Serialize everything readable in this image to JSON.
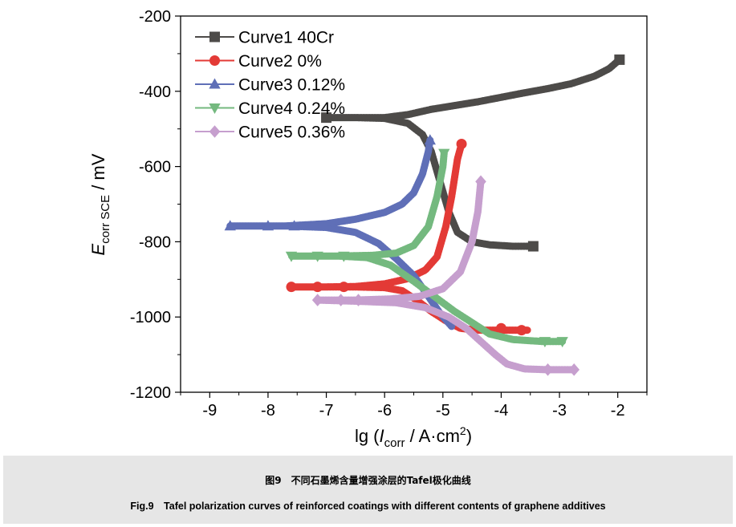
{
  "figure": {
    "caption_cn": "图9　不同石墨烯含量增强涂层的Tafel极化曲线",
    "caption_en": "Fig.9　Tafel polarization curves of reinforced coatings with different contents of graphene additives"
  },
  "chart_data": {
    "type": "line",
    "title": "",
    "xlabel": "lg (I_corr / A·cm^2)",
    "xlabel_parts": {
      "prefix": "lg (",
      "var": "I",
      "sub": "corr",
      "unit": " / A·cm",
      "sup": "2",
      "close": ")"
    },
    "ylabel": "E_corr SCE / mV",
    "ylabel_parts": {
      "var": "E",
      "sub": "corr SCE",
      "unit": " / mV"
    },
    "xlim": [
      -9.5,
      -1.5
    ],
    "ylim": [
      -1200,
      -200
    ],
    "xticks": [
      -9,
      -8,
      -7,
      -6,
      -5,
      -4,
      -3,
      -2
    ],
    "yticks": [
      -200,
      -400,
      -600,
      -800,
      -1000,
      -1200
    ],
    "legend_position": "top-left",
    "series": [
      {
        "name": "Curve1 40Cr",
        "color": "#4d4b49",
        "marker": "square",
        "points": [
          [
            -3.45,
            -812
          ],
          [
            -3.8,
            -812
          ],
          [
            -4.2,
            -808
          ],
          [
            -4.5,
            -800
          ],
          [
            -4.75,
            -775
          ],
          [
            -4.9,
            -720
          ],
          [
            -5.05,
            -640
          ],
          [
            -5.2,
            -560
          ],
          [
            -5.35,
            -515
          ],
          [
            -5.6,
            -485
          ],
          [
            -6.0,
            -472
          ],
          [
            -6.5,
            -470
          ],
          [
            -7.0,
            -470
          ],
          [
            -6.6,
            -470
          ],
          [
            -6.0,
            -470
          ],
          [
            -5.6,
            -462
          ],
          [
            -5.2,
            -448
          ],
          [
            -4.8,
            -438
          ],
          [
            -4.4,
            -428
          ],
          [
            -4.0,
            -416
          ],
          [
            -3.6,
            -404
          ],
          [
            -3.2,
            -393
          ],
          [
            -2.8,
            -380
          ],
          [
            -2.4,
            -360
          ],
          [
            -2.15,
            -340
          ],
          [
            -1.97,
            -316
          ]
        ],
        "markers": [
          [
            -3.45,
            -812
          ],
          [
            -7.0,
            -470
          ],
          [
            -1.97,
            -316
          ]
        ]
      },
      {
        "name": "Curve2 0%",
        "color": "#e33a36",
        "marker": "circle",
        "points": [
          [
            -3.55,
            -1035
          ],
          [
            -4.0,
            -1035
          ],
          [
            -4.4,
            -1035
          ],
          [
            -4.7,
            -1030
          ],
          [
            -4.95,
            -1010
          ],
          [
            -5.2,
            -985
          ],
          [
            -5.45,
            -955
          ],
          [
            -5.7,
            -930
          ],
          [
            -6.0,
            -922
          ],
          [
            -6.5,
            -920
          ],
          [
            -7.0,
            -920
          ],
          [
            -7.6,
            -920
          ],
          [
            -7.0,
            -920
          ],
          [
            -6.5,
            -919
          ],
          [
            -6.0,
            -912
          ],
          [
            -5.6,
            -898
          ],
          [
            -5.3,
            -875
          ],
          [
            -5.1,
            -840
          ],
          [
            -4.95,
            -760
          ],
          [
            -4.85,
            -680
          ],
          [
            -4.75,
            -580
          ],
          [
            -4.68,
            -540
          ]
        ],
        "markers": [
          [
            -7.6,
            -920
          ],
          [
            -7.15,
            -920
          ],
          [
            -6.7,
            -920
          ],
          [
            -4.0,
            -1030
          ],
          [
            -3.65,
            -1035
          ],
          [
            -4.68,
            -540
          ]
        ]
      },
      {
        "name": "Curve3 0.12%",
        "color": "#5f6fb7",
        "marker": "triangle-up",
        "points": [
          [
            -4.85,
            -1025
          ],
          [
            -5.05,
            -990
          ],
          [
            -5.25,
            -945
          ],
          [
            -5.5,
            -890
          ],
          [
            -5.8,
            -845
          ],
          [
            -6.1,
            -805
          ],
          [
            -6.5,
            -775
          ],
          [
            -7.0,
            -762
          ],
          [
            -7.7,
            -758
          ],
          [
            -8.65,
            -758
          ],
          [
            -7.7,
            -758
          ],
          [
            -7.0,
            -752
          ],
          [
            -6.5,
            -740
          ],
          [
            -6.0,
            -722
          ],
          [
            -5.7,
            -700
          ],
          [
            -5.5,
            -670
          ],
          [
            -5.35,
            -620
          ],
          [
            -5.25,
            -560
          ],
          [
            -5.22,
            -530
          ]
        ],
        "markers": [
          [
            -8.65,
            -758
          ],
          [
            -8.0,
            -758
          ],
          [
            -7.55,
            -758
          ],
          [
            -5.22,
            -530
          ]
        ]
      },
      {
        "name": "Curve4 0.24%",
        "color": "#74b97f",
        "marker": "triangle-down",
        "points": [
          [
            -2.95,
            -1065
          ],
          [
            -3.3,
            -1065
          ],
          [
            -3.8,
            -1060
          ],
          [
            -4.2,
            -1045
          ],
          [
            -4.5,
            -1015
          ],
          [
            -4.8,
            -985
          ],
          [
            -5.15,
            -945
          ],
          [
            -5.5,
            -905
          ],
          [
            -5.9,
            -862
          ],
          [
            -6.3,
            -842
          ],
          [
            -6.8,
            -838
          ],
          [
            -7.6,
            -838
          ],
          [
            -6.8,
            -838
          ],
          [
            -6.2,
            -836
          ],
          [
            -5.8,
            -830
          ],
          [
            -5.5,
            -810
          ],
          [
            -5.25,
            -760
          ],
          [
            -5.1,
            -680
          ],
          [
            -5.0,
            -600
          ],
          [
            -4.98,
            -565
          ]
        ],
        "markers": [
          [
            -7.6,
            -838
          ],
          [
            -7.15,
            -838
          ],
          [
            -6.7,
            -838
          ],
          [
            -2.95,
            -1065
          ],
          [
            -3.25,
            -1065
          ],
          [
            -4.98,
            -565
          ]
        ]
      },
      {
        "name": "Curve5 0.36%",
        "color": "#c69fce",
        "marker": "diamond",
        "points": [
          [
            -2.75,
            -1140
          ],
          [
            -3.2,
            -1140
          ],
          [
            -3.6,
            -1138
          ],
          [
            -3.9,
            -1125
          ],
          [
            -4.1,
            -1100
          ],
          [
            -4.35,
            -1065
          ],
          [
            -4.6,
            -1030
          ],
          [
            -4.9,
            -1000
          ],
          [
            -5.3,
            -975
          ],
          [
            -5.8,
            -962
          ],
          [
            -6.5,
            -958
          ],
          [
            -7.15,
            -955
          ],
          [
            -6.5,
            -955
          ],
          [
            -5.9,
            -952
          ],
          [
            -5.4,
            -945
          ],
          [
            -5.0,
            -925
          ],
          [
            -4.7,
            -880
          ],
          [
            -4.5,
            -800
          ],
          [
            -4.4,
            -720
          ],
          [
            -4.35,
            -640
          ]
        ],
        "markers": [
          [
            -7.15,
            -955
          ],
          [
            -6.75,
            -955
          ],
          [
            -6.45,
            -955
          ],
          [
            -3.2,
            -1140
          ],
          [
            -2.75,
            -1140
          ],
          [
            -4.35,
            -640
          ]
        ]
      }
    ]
  }
}
